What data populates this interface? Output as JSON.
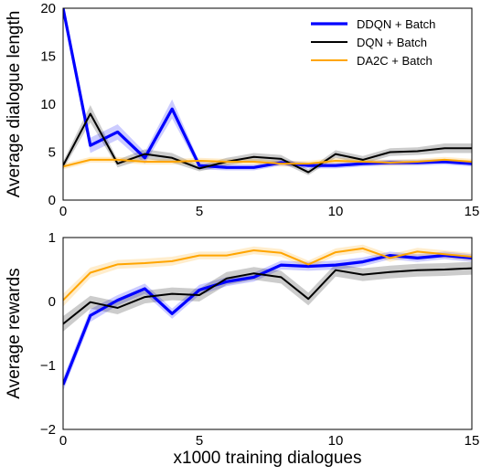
{
  "chart_data": [
    {
      "type": "line",
      "ylabel": "Average dialogue length",
      "xlabel": "",
      "xlim": [
        0,
        15
      ],
      "ylim": [
        0,
        20
      ],
      "xticks": [
        "0",
        "5",
        "10",
        "15"
      ],
      "yticks": [
        "0",
        "5",
        "10",
        "15",
        "20"
      ],
      "grid": false,
      "legend_position": "top-right",
      "x": [
        0,
        1,
        2,
        3,
        4,
        5,
        6,
        7,
        8,
        9,
        10,
        11,
        12,
        13,
        14,
        15
      ],
      "series": [
        {
          "name": "DDQN + Batch",
          "color": "#0000ff",
          "values": [
            20,
            5.7,
            7.1,
            4.4,
            9.5,
            3.6,
            3.4,
            3.4,
            3.9,
            3.6,
            3.6,
            3.8,
            3.9,
            3.9,
            4.0,
            3.8
          ],
          "band": [
            0.6,
            0.8,
            0.8,
            0.6,
            1.0,
            0.4,
            0.3,
            0.3,
            0.3,
            0.3,
            0.3,
            0.3,
            0.3,
            0.3,
            0.3,
            0.3
          ]
        },
        {
          "name": "DQN + Batch",
          "color": "#000000",
          "values": [
            3.6,
            9.0,
            3.8,
            4.8,
            4.4,
            3.3,
            4.0,
            4.5,
            4.3,
            2.9,
            4.8,
            4.2,
            5.0,
            5.1,
            5.4,
            5.4
          ],
          "band": [
            0.4,
            0.9,
            0.4,
            0.5,
            0.5,
            0.3,
            0.4,
            0.4,
            0.4,
            0.3,
            0.4,
            0.4,
            0.4,
            0.4,
            0.5,
            0.5
          ]
        },
        {
          "name": "DA2C + Batch",
          "color": "#ffa500",
          "values": [
            3.5,
            4.2,
            4.2,
            4.0,
            4.0,
            4.1,
            4.0,
            4.0,
            3.8,
            3.8,
            4.1,
            4.0,
            3.9,
            4.0,
            4.2,
            4.0
          ],
          "band": [
            0.3,
            0.3,
            0.3,
            0.3,
            0.3,
            0.3,
            0.3,
            0.3,
            0.3,
            0.3,
            0.3,
            0.3,
            0.3,
            0.3,
            0.3,
            0.3
          ]
        }
      ]
    },
    {
      "type": "line",
      "ylabel": "Average rewards",
      "xlabel": "x1000 training dialogues",
      "xlim": [
        0,
        15
      ],
      "ylim": [
        -2,
        1
      ],
      "xticks": [
        "0",
        "5",
        "10",
        "15"
      ],
      "yticks": [
        "−2",
        "−1",
        "0",
        "1"
      ],
      "grid": false,
      "x": [
        0,
        1,
        2,
        3,
        4,
        5,
        6,
        7,
        8,
        9,
        10,
        11,
        12,
        13,
        14,
        15
      ],
      "series": [
        {
          "name": "DDQN + Batch",
          "color": "#0000ff",
          "values": [
            -1.3,
            -0.22,
            0.02,
            0.2,
            -0.19,
            0.18,
            0.31,
            0.38,
            0.57,
            0.55,
            0.57,
            0.62,
            0.72,
            0.68,
            0.72,
            0.68
          ],
          "band": [
            0.1,
            0.1,
            0.08,
            0.08,
            0.08,
            0.08,
            0.07,
            0.07,
            0.07,
            0.07,
            0.07,
            0.07,
            0.06,
            0.06,
            0.06,
            0.06
          ]
        },
        {
          "name": "DQN + Batch",
          "color": "#000000",
          "values": [
            -0.35,
            -0.01,
            -0.1,
            0.07,
            0.12,
            0.1,
            0.36,
            0.44,
            0.38,
            0.04,
            0.49,
            0.42,
            0.46,
            0.49,
            0.5,
            0.52
          ],
          "band": [
            0.12,
            0.1,
            0.1,
            0.1,
            0.1,
            0.1,
            0.1,
            0.1,
            0.1,
            0.1,
            0.1,
            0.1,
            0.1,
            0.1,
            0.1,
            0.1
          ]
        },
        {
          "name": "DA2C + Batch",
          "color": "#ffa500",
          "values": [
            0.02,
            0.45,
            0.58,
            0.6,
            0.63,
            0.72,
            0.72,
            0.8,
            0.76,
            0.58,
            0.77,
            0.83,
            0.68,
            0.78,
            0.74,
            0.7
          ],
          "band": [
            0.1,
            0.08,
            0.07,
            0.07,
            0.07,
            0.06,
            0.06,
            0.06,
            0.06,
            0.06,
            0.06,
            0.06,
            0.06,
            0.06,
            0.06,
            0.06
          ]
        }
      ]
    }
  ]
}
